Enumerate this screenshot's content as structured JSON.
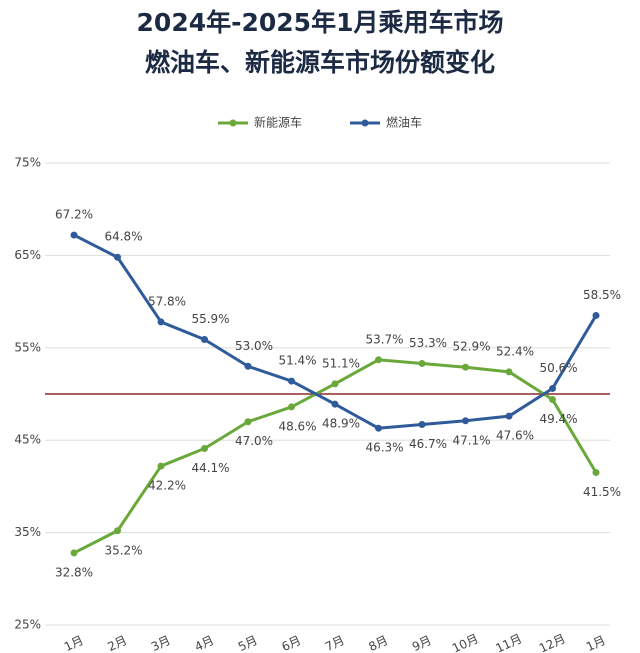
{
  "chart_data": {
    "type": "line",
    "title": "2024年-2025年1月乘用车市场",
    "subtitle": "燃油车、新能源车市场份额变化",
    "categories": [
      "1月",
      "2月",
      "3月",
      "4月",
      "5月",
      "6月",
      "7月",
      "8月",
      "9月",
      "10月",
      "11月",
      "12月",
      "1月"
    ],
    "series": [
      {
        "name": "新能源车",
        "color": "#6aa83a",
        "values": [
          32.8,
          35.2,
          42.2,
          44.1,
          47.0,
          48.6,
          51.1,
          53.7,
          53.3,
          52.9,
          52.4,
          49.4,
          41.5
        ],
        "value_labels": [
          "32.8%",
          "35.2%",
          "42.2%",
          "44.1%",
          "47.0%",
          "48.6%",
          "51.1%",
          "53.7%",
          "53.3%",
          "52.9%",
          "52.4%",
          "49.4%",
          "41.5%"
        ]
      },
      {
        "name": "燃油车",
        "color": "#2f5b9a",
        "values": [
          67.2,
          64.8,
          57.8,
          55.9,
          53.0,
          51.4,
          48.9,
          46.3,
          46.7,
          47.1,
          47.6,
          50.6,
          58.5
        ],
        "value_labels": [
          "67.2%",
          "64.8%",
          "57.8%",
          "55.9%",
          "53.0%",
          "51.4%",
          "48.9%",
          "46.3%",
          "46.7%",
          "47.1%",
          "47.6%",
          "50.6%",
          "58.5%"
        ]
      }
    ],
    "ylim": [
      25,
      75
    ],
    "yticks": [
      {
        "value": 25,
        "label": "25%"
      },
      {
        "value": 35,
        "label": "35%"
      },
      {
        "value": 45,
        "label": "45%"
      },
      {
        "value": 55,
        "label": "55%"
      },
      {
        "value": 65,
        "label": "65%"
      },
      {
        "value": 75,
        "label": "75%"
      }
    ],
    "reference_line": {
      "value": 50,
      "color": "#8b2a2a"
    },
    "grid": true,
    "legend": "top"
  }
}
